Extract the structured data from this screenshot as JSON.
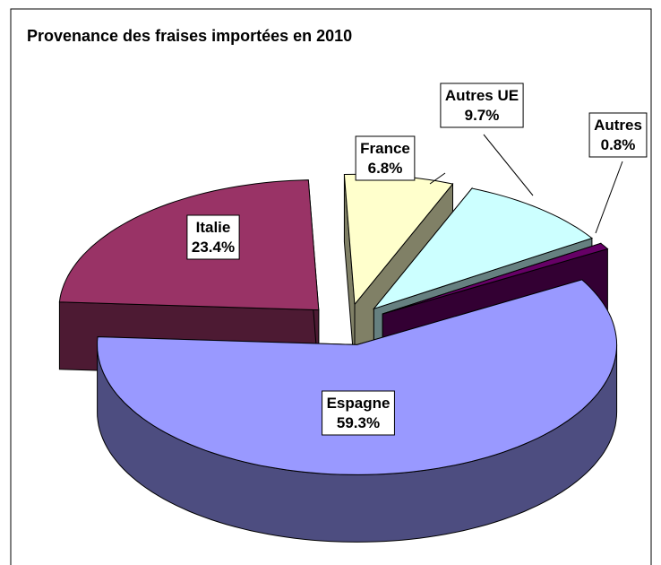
{
  "chart_data": {
    "type": "pie3d",
    "title": "Provenance des fraises importées en 2010",
    "categories": [
      "Espagne",
      "Italie",
      "France",
      "Autres UE",
      "Autres"
    ],
    "values": [
      59.3,
      23.4,
      6.8,
      9.7,
      0.8
    ],
    "value_labels": [
      "59.3%",
      "23.4%",
      "6.8%",
      "9.7%",
      "0.8%"
    ],
    "colors": [
      "#9999ff",
      "#993366",
      "#ffffcc",
      "#ccffff",
      "#660066"
    ]
  }
}
